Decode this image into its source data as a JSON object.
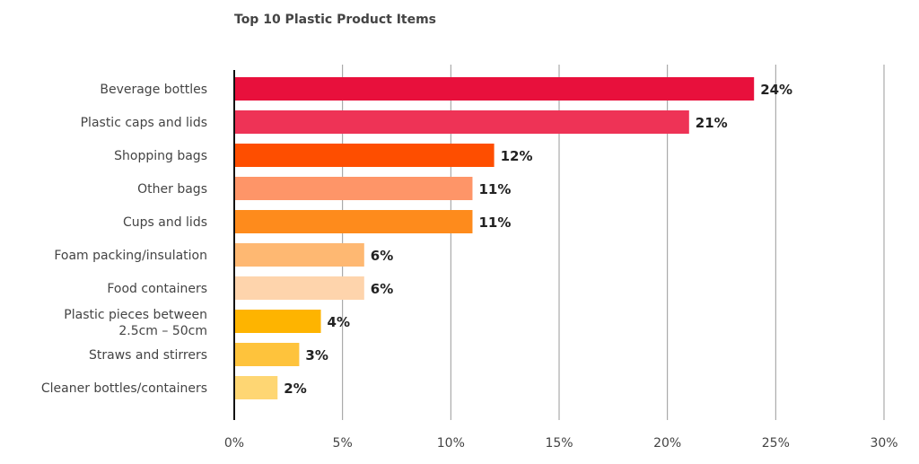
{
  "chart_data": {
    "type": "bar",
    "orientation": "horizontal",
    "title": "Top 10 Plastic Product Items",
    "categories": [
      "Beverage bottles",
      "Plastic caps and lids",
      "Shopping bags",
      "Other bags",
      "Cups and lids",
      "Foam packing/insulation",
      "Food containers",
      "Plastic pieces between 2.5cm – 50cm",
      "Straws and stirrers",
      "Cleaner bottles/containers"
    ],
    "values": [
      24,
      21,
      12,
      11,
      11,
      6,
      6,
      4,
      3,
      2
    ],
    "value_labels": [
      "24%",
      "21%",
      "12%",
      "11%",
      "11%",
      "6%",
      "6%",
      "4%",
      "3%",
      "2%"
    ],
    "colors": [
      "#e8103c",
      "#ee3356",
      "#fe4e00",
      "#fe9568",
      "#fe8b1c",
      "#feb872",
      "#fed4ac",
      "#feb400",
      "#fec33c",
      "#fed673"
    ],
    "xlim": [
      0,
      30
    ],
    "xticks": [
      0,
      5,
      10,
      15,
      20,
      25,
      30
    ],
    "xtick_labels": [
      "0%",
      "5%",
      "10%",
      "15%",
      "20%",
      "25%",
      "30%"
    ],
    "xlabel": "",
    "ylabel": "",
    "grid": "vertical",
    "legend": "none"
  }
}
